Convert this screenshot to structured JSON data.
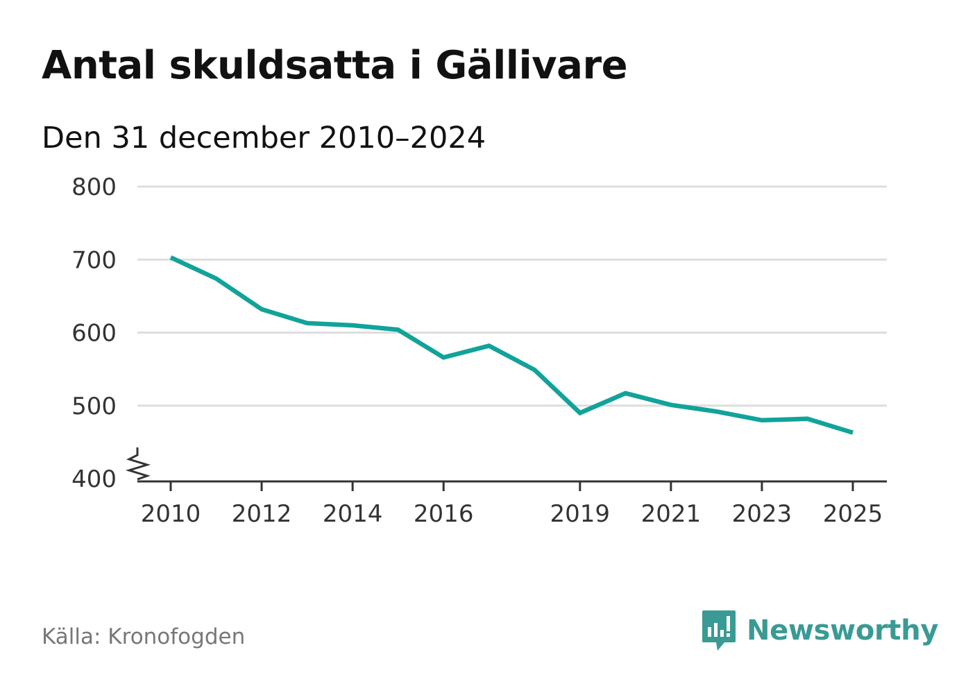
{
  "title": "Antal skuldsatta i Gällivare",
  "subtitle": "Den 31 december 2010–2024",
  "source": "Källa: Kronofogden",
  "brand": {
    "name": "Newsworthy",
    "icon": "bar-chart-speech-bubble-icon",
    "color": "#3a9a94"
  },
  "colors": {
    "line": "#11a39a",
    "grid": "#dddddd",
    "axis": "#333333",
    "text": "#333333"
  },
  "chart_data": {
    "type": "line",
    "title": "Antal skuldsatta i Gällivare",
    "subtitle": "Den 31 december 2010–2024",
    "xlabel": "",
    "ylabel": "",
    "ylim": [
      400,
      800
    ],
    "xlim": [
      2010,
      2025
    ],
    "y_ticks": [
      400,
      500,
      600,
      700,
      800
    ],
    "x_ticks": [
      2010,
      2012,
      2014,
      2016,
      2019,
      2021,
      2023,
      2025
    ],
    "axis_break": true,
    "grid": true,
    "series": [
      {
        "name": "Antal skuldsatta",
        "x": [
          2010,
          2011,
          2012,
          2013,
          2014,
          2015,
          2016,
          2017,
          2018,
          2019,
          2020,
          2021,
          2022,
          2023,
          2024,
          2025
        ],
        "values": [
          703,
          674,
          632,
          613,
          610,
          604,
          566,
          582,
          549,
          490,
          517,
          501,
          492,
          480,
          482,
          463
        ]
      }
    ]
  }
}
